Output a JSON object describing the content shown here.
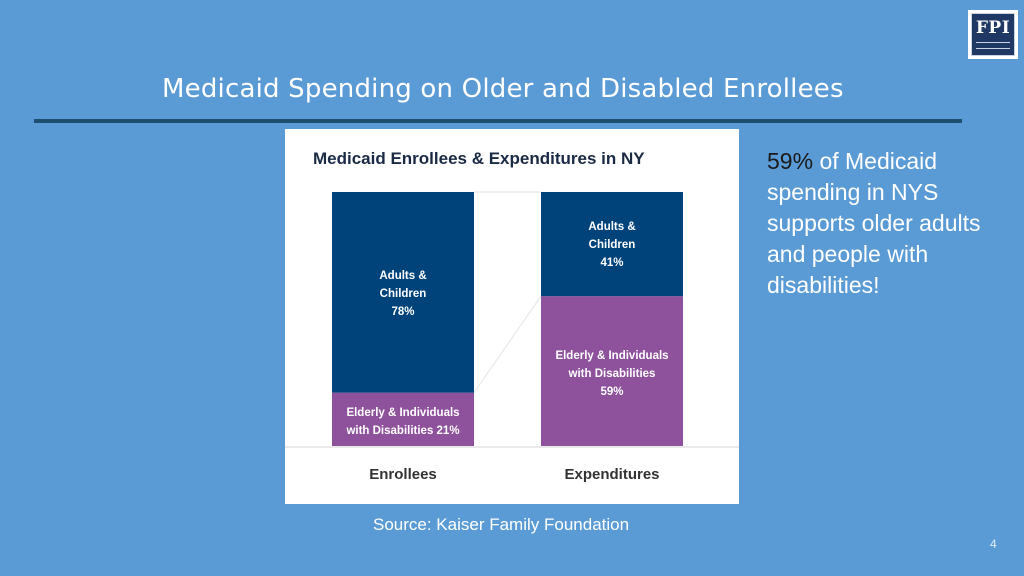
{
  "logo": {
    "text": "FPI"
  },
  "slide": {
    "title": "Medicaid Spending on Older and Disabled Enrollees",
    "page_number": "4"
  },
  "callout": {
    "highlight": "59%",
    "text": "of Medicaid spending in NYS supports older adults and people with disabilities!"
  },
  "source": "Source: Kaiser Family Foundation",
  "colors": {
    "background": "#5b9bd5",
    "adults_children": "#00427a",
    "elderly_disabled": "#8e529c",
    "title_rule": "#1e4e6e",
    "connector": "#e8e8e8"
  },
  "chart_data": {
    "type": "bar",
    "subtype": "stacked-100",
    "title": "Medicaid Enrollees & Expenditures in NY",
    "categories": [
      "Enrollees",
      "Expenditures"
    ],
    "series": [
      {
        "key": "elderly",
        "label_lines": [
          [
            "Elderly & Individuals",
            "with Disabilities 21%"
          ],
          [
            "Elderly & Individuals",
            "with Disabilities",
            "59%"
          ]
        ],
        "values": [
          21,
          59
        ],
        "color": "#8e529c"
      },
      {
        "key": "adults",
        "label_lines": [
          [
            "Adults &",
            "Children",
            "78%"
          ],
          [
            "Adults &",
            "Children",
            "41%"
          ]
        ],
        "values": [
          78,
          41
        ],
        "color": "#00427a"
      }
    ],
    "ylim": [
      0,
      100
    ],
    "grid": false
  }
}
